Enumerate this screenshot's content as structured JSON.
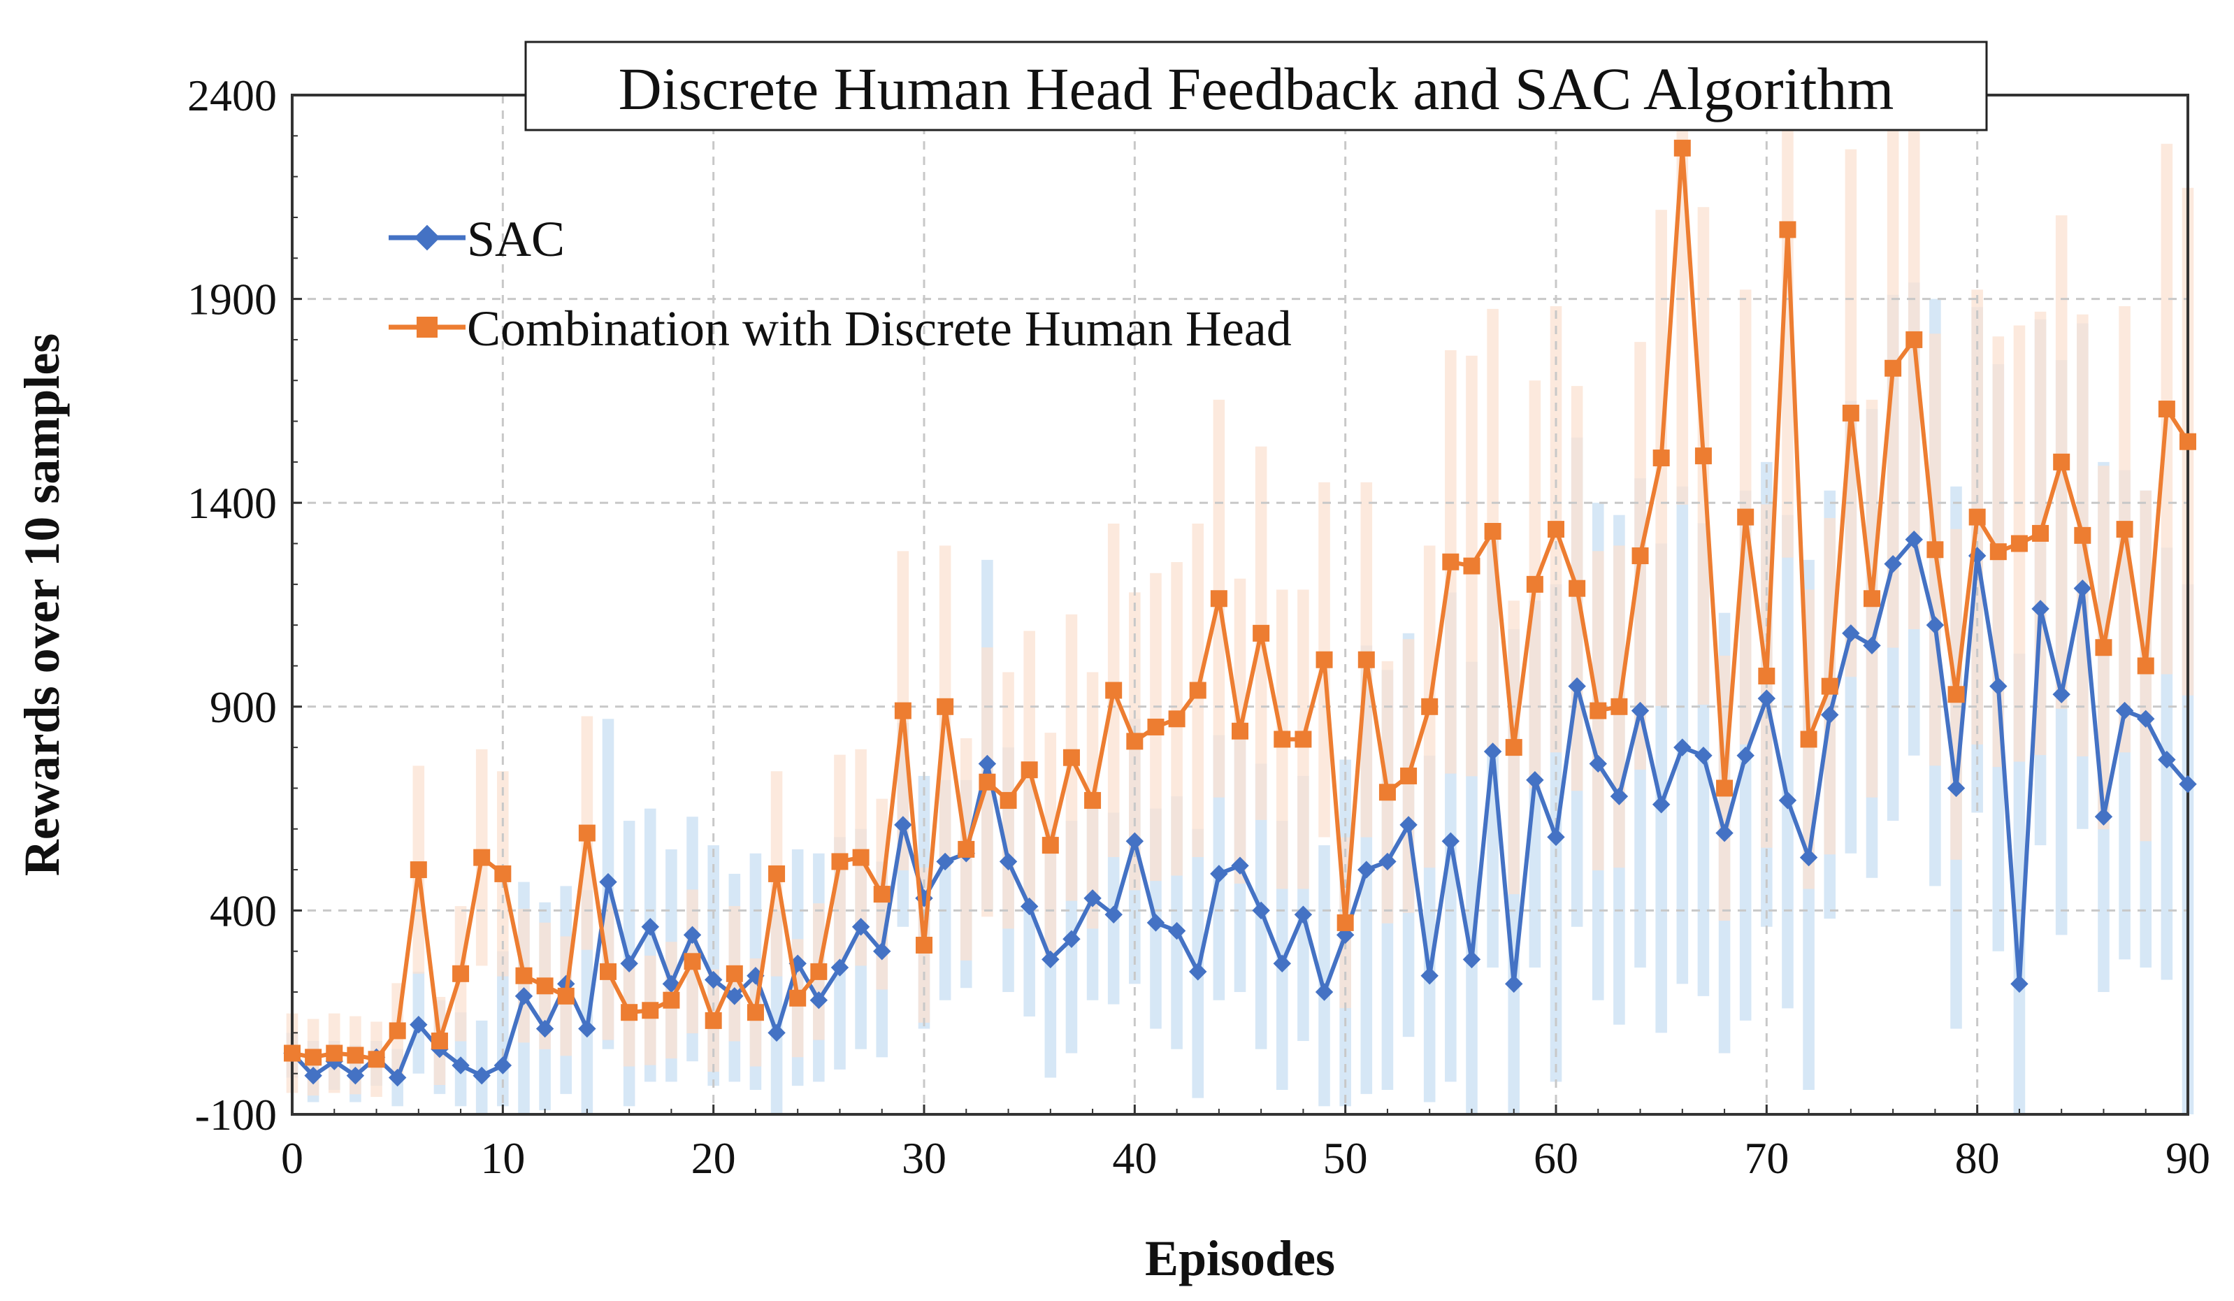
{
  "chart_data": {
    "type": "line",
    "title": "Discrete Human Head Feedback and SAC Algorithm",
    "xlabel": "Episodes",
    "ylabel": "Rewards over 10 samples",
    "xlim": [
      0,
      90
    ],
    "ylim": [
      -100,
      2400
    ],
    "xticks": [
      0,
      10,
      20,
      30,
      40,
      50,
      60,
      70,
      80,
      90
    ],
    "yticks": [
      -100,
      400,
      900,
      1400,
      1900,
      2400
    ],
    "grid": true,
    "legend_position": "top-left",
    "x": [
      0,
      1,
      2,
      3,
      4,
      5,
      6,
      7,
      8,
      9,
      10,
      11,
      12,
      13,
      14,
      15,
      16,
      17,
      18,
      19,
      20,
      21,
      22,
      23,
      24,
      25,
      26,
      27,
      28,
      29,
      30,
      31,
      32,
      33,
      34,
      35,
      36,
      37,
      38,
      39,
      40,
      41,
      42,
      43,
      44,
      45,
      46,
      47,
      48,
      49,
      50,
      51,
      52,
      53,
      54,
      55,
      56,
      57,
      58,
      59,
      60,
      61,
      62,
      63,
      64,
      65,
      66,
      67,
      68,
      69,
      70,
      71,
      72,
      73,
      74,
      75,
      76,
      77,
      78,
      79,
      80,
      81,
      82,
      83,
      84,
      85,
      86,
      87,
      88,
      89,
      90
    ],
    "series": [
      {
        "name": "SAC",
        "color": "#4472C4",
        "band_color": "#cfe3f5",
        "marker": "diamond",
        "values": [
          50,
          -5,
          30,
          -5,
          40,
          -10,
          120,
          60,
          20,
          -5,
          20,
          190,
          110,
          220,
          110,
          470,
          270,
          360,
          220,
          340,
          230,
          190,
          240,
          100,
          270,
          180,
          260,
          360,
          300,
          610,
          430,
          520,
          540,
          760,
          520,
          410,
          280,
          330,
          430,
          390,
          570,
          370,
          350,
          250,
          490,
          510,
          400,
          270,
          390,
          200,
          340,
          500,
          520,
          610,
          240,
          570,
          280,
          790,
          220,
          720,
          580,
          950,
          760,
          680,
          890,
          660,
          800,
          780,
          590,
          780,
          920,
          670,
          530,
          880,
          1080,
          1050,
          1250,
          1310,
          1100,
          700,
          1270,
          950,
          220,
          1140,
          930,
          1190,
          630,
          890,
          870,
          770,
          710
        ],
        "band_upper": [
          100,
          80,
          80,
          70,
          80,
          60,
          250,
          180,
          150,
          130,
          300,
          470,
          420,
          460,
          450,
          870,
          620,
          650,
          550,
          630,
          560,
          490,
          540,
          400,
          550,
          540,
          580,
          600,
          520,
          860,
          730,
          720,
          720,
          1260,
          800,
          720,
          600,
          620,
          660,
          640,
          870,
          650,
          680,
          600,
          830,
          850,
          760,
          620,
          730,
          560,
          770,
          1050,
          990,
          1080,
          780,
          1180,
          1010,
          1350,
          1090,
          1160,
          1200,
          1560,
          1400,
          1370,
          1460,
          1300,
          1440,
          1350,
          1130,
          1430,
          1500,
          1370,
          1260,
          1430,
          1650,
          1630,
          1910,
          1940,
          1900,
          1440,
          1880,
          1740,
          1030,
          1850,
          1750,
          1840,
          1500,
          1480,
          1430,
          1290,
          1200
        ],
        "band_lower": [
          -10,
          -70,
          -40,
          -70,
          -30,
          -80,
          0,
          -50,
          -80,
          -100,
          -80,
          -100,
          -90,
          -50,
          -100,
          60,
          -80,
          -20,
          -20,
          30,
          -30,
          -20,
          -40,
          -100,
          -30,
          -20,
          10,
          60,
          40,
          360,
          110,
          180,
          210,
          400,
          200,
          140,
          -10,
          50,
          180,
          170,
          220,
          110,
          60,
          -60,
          180,
          200,
          60,
          -40,
          80,
          -80,
          -80,
          -50,
          -40,
          90,
          -70,
          -20,
          -100,
          260,
          -100,
          260,
          -20,
          360,
          180,
          120,
          260,
          100,
          220,
          190,
          50,
          130,
          360,
          160,
          -40,
          380,
          540,
          480,
          620,
          780,
          460,
          110,
          640,
          300,
          -100,
          560,
          340,
          600,
          200,
          280,
          260,
          230,
          -100
        ]
      },
      {
        "name": "Combination with Discrete Human Head",
        "color": "#ED7D31",
        "band_color": "#fbe2d2",
        "marker": "square",
        "values": [
          50,
          40,
          50,
          45,
          35,
          105,
          500,
          80,
          245,
          530,
          490,
          240,
          215,
          190,
          590,
          250,
          150,
          155,
          180,
          275,
          130,
          245,
          150,
          490,
          185,
          250,
          520,
          530,
          440,
          890,
          315,
          900,
          550,
          715,
          670,
          745,
          560,
          775,
          670,
          940,
          815,
          850,
          870,
          940,
          1165,
          840,
          1080,
          820,
          820,
          1015,
          370,
          1015,
          690,
          730,
          900,
          1255,
          1245,
          1330,
          800,
          1200,
          1335,
          1190,
          890,
          900,
          1270,
          1510,
          2270,
          1515,
          700,
          1365,
          975,
          2070,
          820,
          950,
          1620,
          1165,
          1730,
          1800,
          1285,
          930,
          1365,
          1280,
          1300,
          1325,
          1500,
          1320,
          1045,
          1335,
          1000,
          1630,
          1550
        ]
      }
    ]
  }
}
